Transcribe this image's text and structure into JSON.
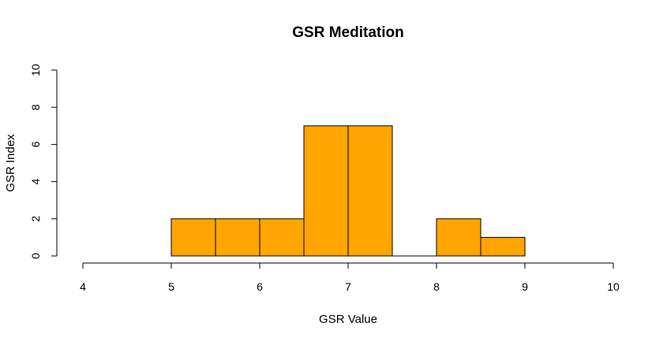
{
  "chart_data": {
    "type": "bar",
    "title": "GSR Meditation",
    "xlabel": "GSR Value",
    "ylabel": "GSR Index",
    "xlim": [
      4,
      10
    ],
    "ylim": [
      0,
      10
    ],
    "x_ticks": [
      "4",
      "5",
      "6",
      "7",
      "8",
      "9",
      "10"
    ],
    "y_ticks": [
      "0",
      "2",
      "4",
      "6",
      "8",
      "10"
    ],
    "bins": [
      {
        "start": 5.0,
        "end": 5.5,
        "count": 2
      },
      {
        "start": 5.5,
        "end": 6.0,
        "count": 2
      },
      {
        "start": 6.0,
        "end": 6.5,
        "count": 2
      },
      {
        "start": 6.5,
        "end": 7.0,
        "count": 7
      },
      {
        "start": 7.0,
        "end": 7.5,
        "count": 7
      },
      {
        "start": 7.5,
        "end": 8.0,
        "count": 0
      },
      {
        "start": 8.0,
        "end": 8.5,
        "count": 2
      },
      {
        "start": 8.5,
        "end": 9.0,
        "count": 1
      }
    ],
    "bar_color": "#FFA500",
    "grid": false,
    "legend": "none"
  }
}
